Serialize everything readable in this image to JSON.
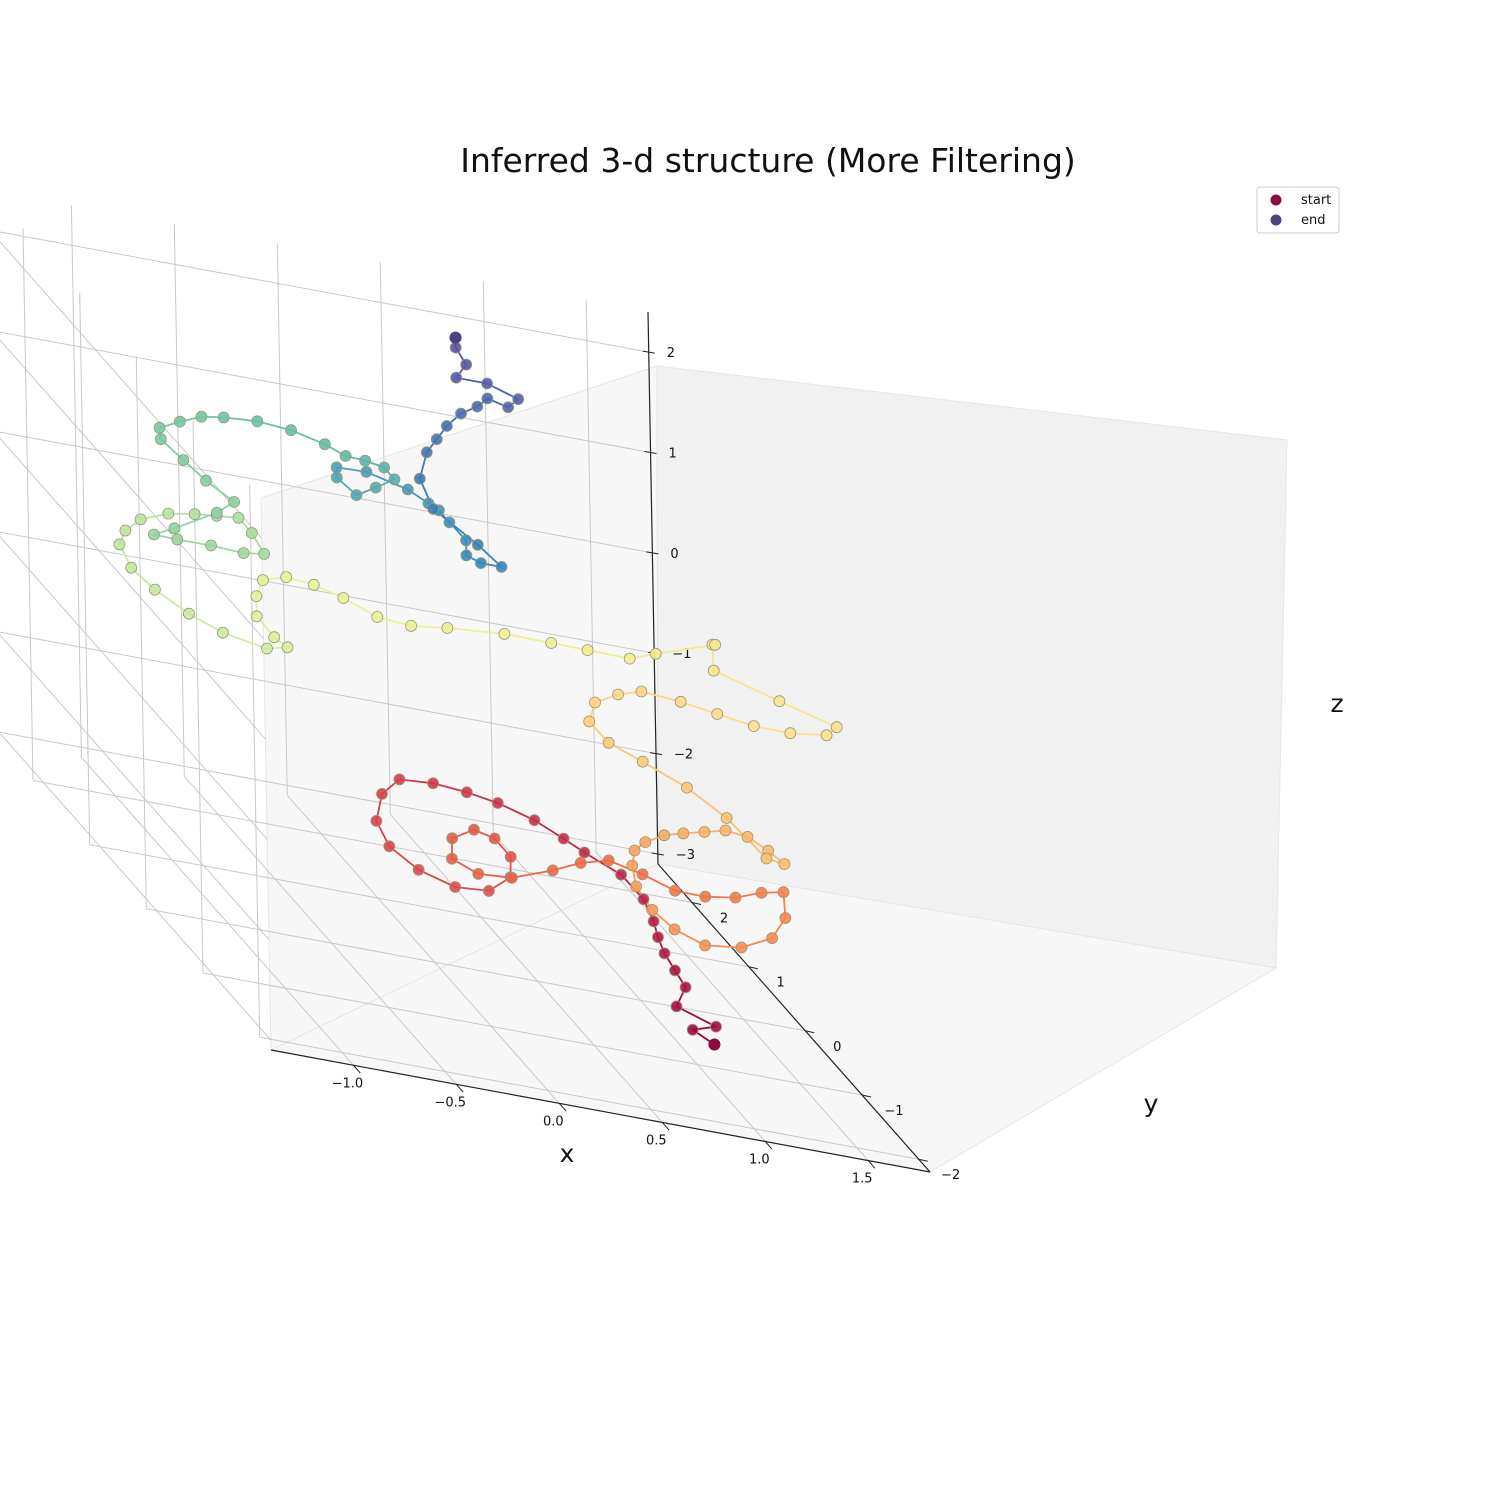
{
  "chart_data": {
    "type": "scatter",
    "projection": "3d",
    "title": "Inferred 3-d structure (More Filtering)",
    "xlabel": "x",
    "ylabel": "y",
    "zlabel": "z",
    "xlim": [
      -1.4,
      1.8
    ],
    "ylim": [
      -2.2,
      2.6
    ],
    "zlim": [
      -3.1,
      2.4
    ],
    "x_ticks": [
      -1.0,
      -0.5,
      0.0,
      0.5,
      1.0,
      1.5
    ],
    "x_tick_labels": [
      "−1.0",
      "−0.5",
      "0.0",
      "0.5",
      "1.0",
      "1.5"
    ],
    "y_ticks": [
      -2,
      -1,
      0,
      1,
      2
    ],
    "y_tick_labels": [
      "−2",
      "−1",
      "0",
      "1",
      "2"
    ],
    "z_ticks": [
      -3,
      -2,
      -1,
      0,
      1,
      2
    ],
    "z_tick_labels": [
      "−3",
      "−2",
      "−1",
      "0",
      "1",
      "2"
    ],
    "grid": true,
    "colormap": "Spectral",
    "colormap_stops": [
      "#9e0142",
      "#d53e4f",
      "#f46d43",
      "#fdae61",
      "#fee08b",
      "#e6f598",
      "#abdda4",
      "#66c2a5",
      "#3288bd",
      "#5e4fa2"
    ],
    "legend": {
      "placement": "top-right",
      "entries": [
        {
          "label": "start",
          "color": "#8c0a3e"
        },
        {
          "label": "end",
          "color": "#4a4282"
        }
      ]
    },
    "series": [
      {
        "points": [
          [
            0.95,
            -1.5,
            -2.6
          ],
          [
            0.9,
            -1.3,
            -2.6
          ],
          [
            1.0,
            -1.35,
            -2.5
          ],
          [
            0.85,
            -1.2,
            -2.45
          ],
          [
            0.95,
            -1.0,
            -2.35
          ],
          [
            0.9,
            -1.0,
            -2.2
          ],
          [
            0.85,
            -1.0,
            -2.05
          ],
          [
            0.82,
            -1.0,
            -1.9
          ],
          [
            0.8,
            -1.0,
            -1.75
          ],
          [
            0.78,
            -0.9,
            -1.6
          ],
          [
            0.7,
            -0.8,
            -1.45
          ],
          [
            0.55,
            -0.7,
            -1.35
          ],
          [
            0.45,
            -0.7,
            -1.25
          ],
          [
            0.35,
            -0.55,
            -1.2
          ],
          [
            0.2,
            -0.45,
            -1.15
          ],
          [
            0.05,
            -0.45,
            -1.1
          ],
          [
            -0.1,
            -0.4,
            -1.1
          ],
          [
            -0.25,
            -0.35,
            -1.15
          ],
          [
            -0.35,
            -0.4,
            -1.3
          ],
          [
            -0.42,
            -0.55,
            -1.5
          ],
          [
            -0.4,
            -0.7,
            -1.65
          ],
          [
            -0.3,
            -0.85,
            -1.75
          ],
          [
            -0.15,
            -0.95,
            -1.8
          ],
          [
            0.0,
            -1.0,
            -1.75
          ],
          [
            0.12,
            -0.95,
            -1.6
          ],
          [
            0.15,
            -0.85,
            -1.45
          ],
          [
            0.1,
            -0.75,
            -1.35
          ],
          [
            0.0,
            -0.75,
            -1.3
          ],
          [
            -0.12,
            -0.8,
            -1.4
          ],
          [
            -0.15,
            -0.9,
            -1.55
          ],
          [
            -0.05,
            -1.0,
            -1.6
          ],
          [
            0.1,
            -1.05,
            -1.55
          ],
          [
            0.3,
            -1.05,
            -1.4
          ],
          [
            0.45,
            -1.0,
            -1.3
          ],
          [
            0.6,
            -0.95,
            -1.25
          ],
          [
            0.75,
            -1.0,
            -1.3
          ],
          [
            0.88,
            -1.1,
            -1.35
          ],
          [
            1.0,
            -1.2,
            -1.3
          ],
          [
            1.12,
            -1.3,
            -1.2
          ],
          [
            1.22,
            -1.4,
            -1.05
          ],
          [
            1.3,
            -1.5,
            -0.95
          ],
          [
            1.28,
            -1.6,
            -1.15
          ],
          [
            1.2,
            -1.65,
            -1.35
          ],
          [
            1.05,
            -1.65,
            -1.5
          ],
          [
            0.9,
            -1.55,
            -1.6
          ],
          [
            0.78,
            -1.45,
            -1.55
          ],
          [
            0.7,
            -1.35,
            -1.45
          ],
          [
            0.65,
            -1.25,
            -1.3
          ],
          [
            0.66,
            -1.15,
            -1.15
          ],
          [
            0.7,
            -1.05,
            -1.05
          ],
          [
            0.78,
            -0.95,
            -1.0
          ],
          [
            0.9,
            -0.85,
            -0.95
          ],
          [
            1.02,
            -0.75,
            -0.95
          ],
          [
            1.15,
            -0.65,
            -0.95
          ],
          [
            1.28,
            -0.55,
            -0.95
          ],
          [
            1.4,
            -0.5,
            -1.0
          ],
          [
            1.5,
            -0.5,
            -1.1
          ],
          [
            1.55,
            -0.6,
            -1.15
          ],
          [
            1.45,
            -0.65,
            -1.1
          ],
          [
            1.3,
            -0.5,
            -0.85
          ],
          [
            1.15,
            -0.35,
            -0.7
          ],
          [
            0.95,
            -0.3,
            -0.55
          ],
          [
            0.8,
            -0.25,
            -0.45
          ],
          [
            0.72,
            -0.2,
            -0.3
          ],
          [
            0.75,
            -0.2,
            -0.1
          ],
          [
            0.85,
            -0.25,
            0.05
          ],
          [
            0.95,
            -0.3,
            0.15
          ],
          [
            1.1,
            -0.45,
            0.2
          ],
          [
            1.25,
            -0.55,
            0.2
          ],
          [
            1.4,
            -0.65,
            0.2
          ],
          [
            1.55,
            -0.75,
            0.25
          ],
          [
            1.7,
            -0.85,
            0.35
          ],
          [
            1.75,
            -0.85,
            0.45
          ],
          [
            1.5,
            -0.75,
            0.55
          ],
          [
            1.25,
            -0.5,
            0.6
          ],
          [
            1.3,
            -0.3,
            0.75
          ],
          [
            1.3,
            -0.35,
            0.78
          ],
          [
            1.05,
            -0.2,
            0.5
          ],
          [
            0.95,
            -0.1,
            0.35
          ],
          [
            0.8,
            0.1,
            0.25
          ],
          [
            0.65,
            0.2,
            0.2
          ],
          [
            0.45,
            0.3,
            0.15
          ],
          [
            0.2,
            0.4,
            0.05
          ],
          [
            0.05,
            0.5,
            -0.05
          ],
          [
            -0.1,
            0.55,
            -0.05
          ],
          [
            -0.25,
            0.6,
            0.05
          ],
          [
            -0.38,
            0.65,
            0.1
          ],
          [
            -0.5,
            0.7,
            0.1
          ],
          [
            -0.6,
            0.75,
            0.0
          ],
          [
            -0.62,
            0.8,
            -0.2
          ],
          [
            -0.62,
            0.8,
            -0.4
          ],
          [
            -0.55,
            0.75,
            -0.55
          ],
          [
            -0.5,
            0.7,
            -0.6
          ],
          [
            -0.6,
            0.7,
            -0.65
          ],
          [
            -0.8,
            0.75,
            -0.6
          ],
          [
            -0.95,
            0.8,
            -0.5
          ],
          [
            -1.1,
            0.85,
            -0.35
          ],
          [
            -1.2,
            0.9,
            -0.2
          ],
          [
            -1.25,
            0.92,
            0.0
          ],
          [
            -1.22,
            0.92,
            0.15
          ],
          [
            -1.15,
            0.9,
            0.3
          ],
          [
            -1.02,
            0.88,
            0.42
          ],
          [
            -0.9,
            0.85,
            0.48
          ],
          [
            -0.8,
            0.82,
            0.52
          ],
          [
            -0.7,
            0.8,
            0.55
          ],
          [
            -0.65,
            0.75,
            0.45
          ],
          [
            -0.6,
            0.72,
            0.28
          ],
          [
            -0.7,
            0.72,
            0.25
          ],
          [
            -0.85,
            0.75,
            0.25
          ],
          [
            -1.0,
            0.8,
            0.22
          ],
          [
            -1.1,
            0.85,
            0.2
          ],
          [
            -1.0,
            0.85,
            0.3
          ],
          [
            -0.8,
            0.82,
            0.55
          ],
          [
            -0.72,
            0.8,
            0.7
          ],
          [
            -0.85,
            0.82,
            0.85
          ],
          [
            -0.95,
            0.85,
            1.0
          ],
          [
            -1.05,
            0.88,
            1.15
          ],
          [
            -1.05,
            0.9,
            1.25
          ],
          [
            -0.95,
            0.9,
            1.35
          ],
          [
            -0.85,
            0.88,
            1.45
          ],
          [
            -0.75,
            0.85,
            1.5
          ],
          [
            -0.6,
            0.8,
            1.55
          ],
          [
            -0.45,
            0.75,
            1.55
          ],
          [
            -0.3,
            0.7,
            1.5
          ],
          [
            -0.2,
            0.7,
            1.42
          ],
          [
            -0.1,
            0.72,
            1.4
          ],
          [
            0.0,
            0.75,
            1.35
          ],
          [
            0.05,
            0.75,
            1.25
          ],
          [
            -0.05,
            0.72,
            1.15
          ],
          [
            -0.15,
            0.7,
            1.05
          ],
          [
            -0.25,
            0.68,
            1.2
          ],
          [
            -0.25,
            0.68,
            1.3
          ],
          [
            -0.1,
            0.7,
            1.3
          ],
          [
            0.1,
            0.7,
            1.2
          ],
          [
            0.2,
            0.7,
            1.1
          ],
          [
            0.25,
            0.7,
            1.05
          ],
          [
            0.3,
            0.7,
            0.95
          ],
          [
            0.38,
            0.7,
            0.8
          ],
          [
            0.38,
            0.7,
            0.65
          ],
          [
            0.45,
            0.7,
            0.6
          ],
          [
            0.55,
            0.7,
            0.6
          ],
          [
            0.45,
            0.75,
            0.75
          ],
          [
            0.25,
            0.8,
            1.0
          ],
          [
            0.2,
            0.85,
            1.25
          ],
          [
            0.25,
            0.9,
            1.5
          ],
          [
            0.3,
            0.9,
            1.65
          ],
          [
            0.35,
            0.9,
            1.8
          ],
          [
            0.42,
            0.9,
            1.95
          ],
          [
            0.5,
            0.9,
            2.05
          ],
          [
            0.55,
            0.9,
            2.15
          ],
          [
            0.65,
            0.9,
            2.1
          ],
          [
            0.7,
            0.9,
            2.2
          ],
          [
            0.55,
            0.9,
            2.3
          ],
          [
            0.4,
            0.9,
            2.3
          ],
          [
            0.45,
            0.9,
            2.45
          ],
          [
            0.4,
            0.9,
            2.6
          ],
          [
            0.4,
            0.9,
            2.7
          ]
        ]
      }
    ]
  }
}
